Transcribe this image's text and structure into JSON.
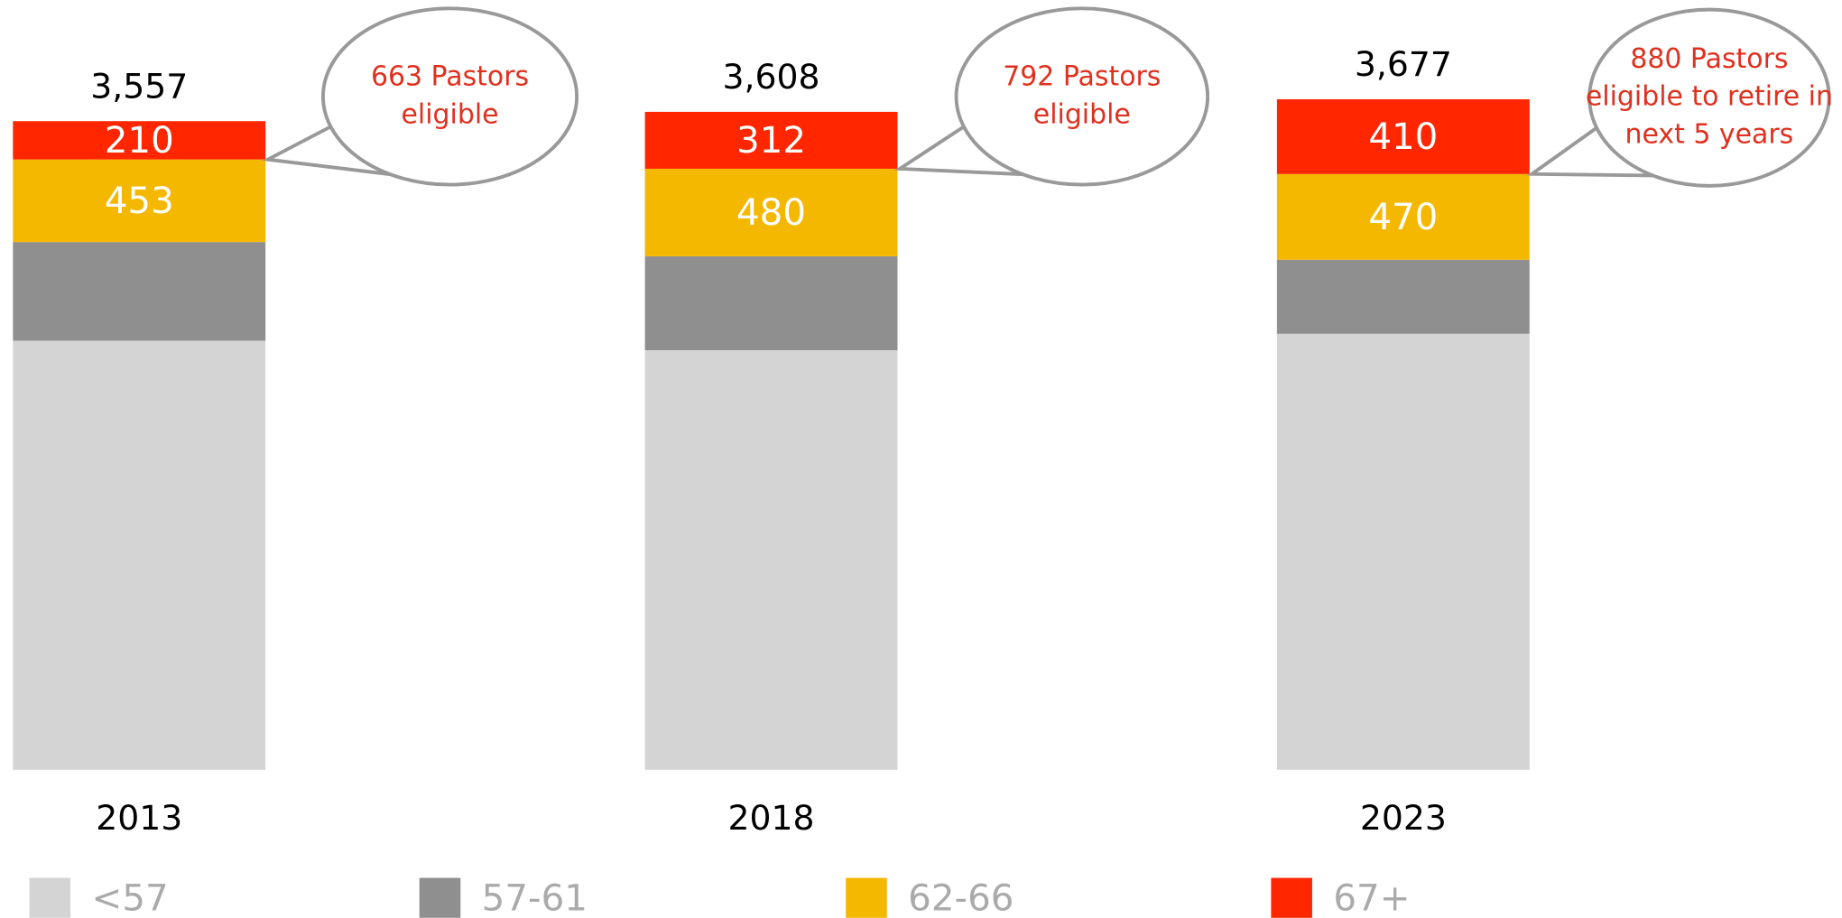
{
  "chart_data": {
    "type": "stacked_bar",
    "categories": [
      "2013",
      "2018",
      "2023"
    ],
    "series": [
      {
        "name": "<57",
        "color": "#d4d4d4",
        "values": [
          2353,
          2301,
          2391
        ],
        "labels": false
      },
      {
        "name": "57-61",
        "color": "#8f8f8f",
        "values": [
          541,
          515,
          406
        ],
        "labels": false
      },
      {
        "name": "62-66",
        "color": "#f5b800",
        "values": [
          453,
          480,
          470
        ],
        "labels": true
      },
      {
        "name": "67+",
        "color": "#ff2600",
        "values": [
          210,
          312,
          410
        ],
        "labels": true
      }
    ],
    "totals": [
      3557,
      3608,
      3677
    ],
    "total_labels": [
      "3,557",
      "3,608",
      "3,677"
    ],
    "annotations": [
      {
        "lines": [
          "663 Pastors",
          "eligible"
        ]
      },
      {
        "lines": [
          "792 Pastors",
          "eligible"
        ]
      },
      {
        "lines": [
          "880 Pastors",
          "eligible to retire in",
          "next 5 years"
        ]
      }
    ],
    "annotation_color": "#e0301e",
    "ylim": [
      0,
      4000
    ],
    "legend": "bottom"
  }
}
